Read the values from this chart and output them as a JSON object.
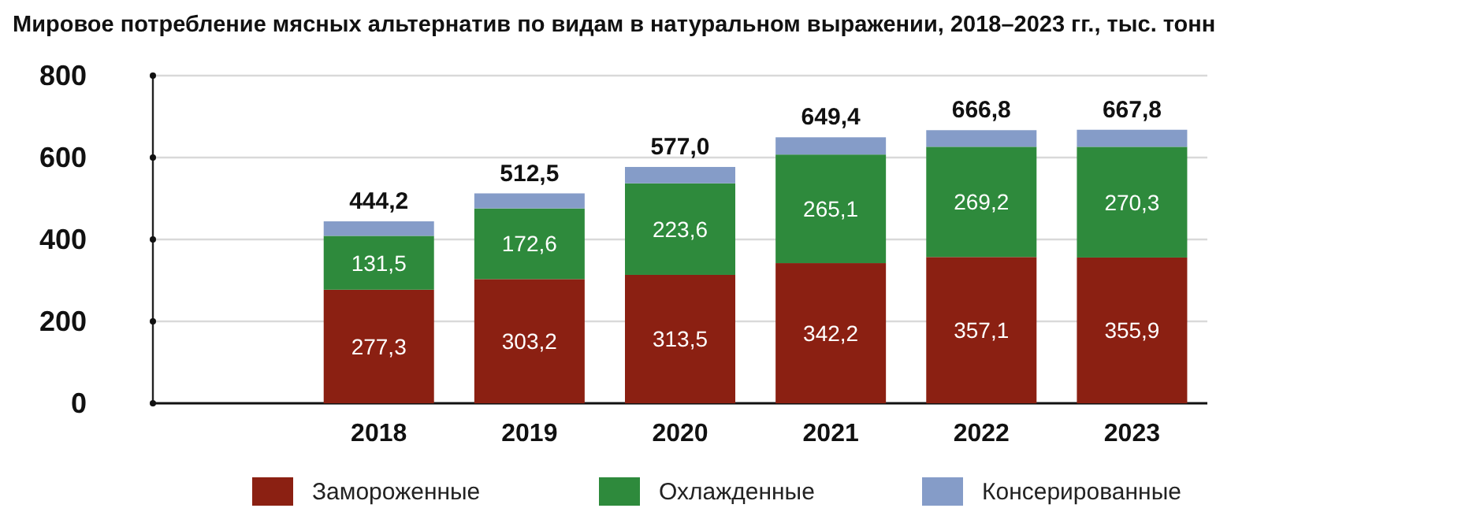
{
  "chart_data": {
    "type": "bar",
    "stacked": true,
    "title": "Мировое потребление мясных альтернатив по видам в натуральном выражении, 2018–2023 гг., тыс. тонн",
    "categories": [
      "2018",
      "2019",
      "2020",
      "2021",
      "2022",
      "2023"
    ],
    "series": [
      {
        "name": "Замороженные",
        "color": "#8b2012",
        "values": [
          277.3,
          303.2,
          313.5,
          342.2,
          357.1,
          355.9
        ],
        "value_labels": [
          "277,3",
          "303,2",
          "313,5",
          "342,2",
          "357,1",
          "355,9"
        ]
      },
      {
        "name": "Охлажденные",
        "color": "#2e8a3c",
        "values": [
          131.5,
          172.6,
          223.6,
          265.1,
          269.2,
          270.3
        ],
        "value_labels": [
          "131,5",
          "172,6",
          "223,6",
          "265,1",
          "269,2",
          "270,3"
        ]
      },
      {
        "name": "Консерированные",
        "color": "#859cc8",
        "values": [
          35.4,
          36.7,
          39.9,
          42.1,
          40.5,
          41.6
        ]
      }
    ],
    "totals": [
      "444,2",
      "512,5",
      "577,0",
      "649,4",
      "666,8",
      "667,8"
    ],
    "ylim": [
      0,
      800
    ],
    "yticks": [
      0,
      200,
      400,
      600,
      800
    ],
    "grid": "y",
    "legend": "bottom"
  }
}
